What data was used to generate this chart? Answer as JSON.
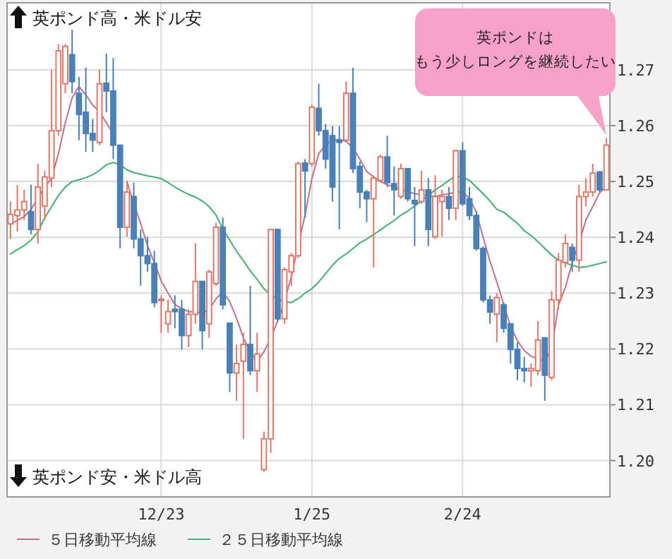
{
  "chart_data": {
    "type": "candlestick",
    "annotations": [
      "英ポンド高・米ドル安",
      "英ポンド安・米ドル高",
      "英ポンドは",
      "もう少しロングを継続したい"
    ],
    "categories": [
      null,
      null,
      null,
      null,
      null,
      null,
      null,
      null,
      null,
      null,
      null,
      null,
      null,
      null,
      null,
      null,
      null,
      null,
      null,
      null,
      null,
      null,
      "12/23",
      null,
      null,
      null,
      null,
      null,
      null,
      null,
      null,
      null,
      null,
      null,
      null,
      null,
      null,
      null,
      null,
      null,
      null,
      null,
      null,
      null,
      "1/25",
      null,
      null,
      null,
      null,
      null,
      null,
      null,
      null,
      null,
      null,
      null,
      null,
      null,
      null,
      null,
      null,
      null,
      null,
      null,
      null,
      null,
      "2/24",
      null,
      null,
      null,
      null,
      null,
      null,
      null,
      null,
      null,
      null,
      null,
      null,
      null,
      null,
      null,
      null,
      null,
      null,
      null,
      null,
      null
    ],
    "ohlc": [
      [
        1.2424,
        1.2464,
        1.2397,
        1.2441
      ],
      [
        1.2439,
        1.2494,
        1.241,
        1.2449
      ],
      [
        1.2449,
        1.2485,
        1.2431,
        1.2464
      ],
      [
        1.2446,
        1.2494,
        1.2405,
        1.2414
      ],
      [
        1.2414,
        1.2532,
        1.2389,
        1.249
      ],
      [
        1.2456,
        1.2519,
        1.2431,
        1.2508
      ],
      [
        1.2506,
        1.27,
        1.249,
        1.2591
      ],
      [
        1.2591,
        1.2746,
        1.2582,
        1.2734
      ],
      [
        1.2675,
        1.2746,
        1.2658,
        1.2742
      ],
      [
        1.2727,
        1.2772,
        1.2658,
        1.2679
      ],
      [
        1.2658,
        1.2687,
        1.2574,
        1.262
      ],
      [
        1.2624,
        1.2704,
        1.2553,
        1.2586
      ],
      [
        1.2586,
        1.2612,
        1.2553,
        1.2574
      ],
      [
        1.257,
        1.27,
        1.2565,
        1.2675
      ],
      [
        1.2676,
        1.2729,
        1.2624,
        1.2662
      ],
      [
        1.2662,
        1.2721,
        1.254,
        1.2565
      ],
      [
        1.2565,
        1.2565,
        1.238,
        1.2418
      ],
      [
        1.2418,
        1.2502,
        1.2401,
        1.2481
      ],
      [
        1.2473,
        1.2498,
        1.238,
        1.2397
      ],
      [
        1.2397,
        1.2414,
        1.2313,
        1.2367
      ],
      [
        1.2367,
        1.2401,
        1.2338,
        1.2353
      ],
      [
        1.2353,
        1.2376,
        1.2275,
        1.2283
      ],
      [
        1.2287,
        1.2296,
        1.2229,
        1.2289
      ],
      [
        1.2245,
        1.2288,
        1.2229,
        1.2267
      ],
      [
        1.2271,
        1.2296,
        1.2237,
        1.2267
      ],
      [
        1.2271,
        1.2288,
        1.2199,
        1.2224
      ],
      [
        1.2224,
        1.2271,
        1.2203,
        1.2262
      ],
      [
        1.2262,
        1.2389,
        1.2245,
        1.2321
      ],
      [
        1.2321,
        1.2321,
        1.2199,
        1.2233
      ],
      [
        1.2245,
        1.2342,
        1.222,
        1.2338
      ],
      [
        1.2317,
        1.2426,
        1.2313,
        1.2418
      ],
      [
        1.2418,
        1.2435,
        1.2271,
        1.2279
      ],
      [
        1.2246,
        1.2246,
        1.2123,
        1.2157
      ],
      [
        1.2157,
        1.2208,
        1.2107,
        1.2174
      ],
      [
        1.2178,
        1.2229,
        1.2039,
        1.2208
      ],
      [
        1.2208,
        1.2313,
        1.2153,
        1.2161
      ],
      [
        1.2161,
        1.2229,
        1.2123,
        1.2191
      ],
      [
        1.1984,
        1.2052,
        1.198,
        1.2039
      ],
      [
        1.2039,
        1.2414,
        1.2014,
        1.2414
      ],
      [
        1.2414,
        1.2414,
        1.225,
        1.2254
      ],
      [
        1.2254,
        1.2346,
        1.2245,
        1.2342
      ],
      [
        1.2338,
        1.2372,
        1.2313,
        1.2367
      ],
      [
        1.2367,
        1.2536,
        1.2363,
        1.2532
      ],
      [
        1.2533,
        1.254,
        1.2435,
        1.2519
      ],
      [
        1.2532,
        1.2637,
        1.2527,
        1.2633
      ],
      [
        1.2631,
        1.2675,
        1.2582,
        1.2591
      ],
      [
        1.2591,
        1.2603,
        1.2523,
        1.254
      ],
      [
        1.2582,
        1.2599,
        1.2464,
        1.249
      ],
      [
        1.2574,
        1.2599,
        1.2414,
        1.257
      ],
      [
        1.2574,
        1.2679,
        1.257,
        1.2658
      ],
      [
        1.2658,
        1.2704,
        1.2515,
        1.2523
      ],
      [
        1.2527,
        1.2536,
        1.2452,
        1.2481
      ],
      [
        1.2481,
        1.2485,
        1.2427,
        1.2469
      ],
      [
        1.2469,
        1.2511,
        1.2346,
        1.2506
      ],
      [
        1.2502,
        1.2548,
        1.2498,
        1.2544
      ],
      [
        1.2544,
        1.2582,
        1.249,
        1.2498
      ],
      [
        1.2496,
        1.2527,
        1.2439,
        1.2485
      ],
      [
        1.2473,
        1.2532,
        1.2469,
        1.2523
      ],
      [
        1.2523,
        1.2523,
        1.2464,
        1.2469
      ],
      [
        1.2466,
        1.249,
        1.2384,
        1.246
      ],
      [
        1.2464,
        1.2519,
        1.246,
        1.2485
      ],
      [
        1.2485,
        1.2506,
        1.2384,
        1.2414
      ],
      [
        1.2401,
        1.2511,
        1.2397,
        1.2473
      ],
      [
        1.2464,
        1.2485,
        1.2401,
        1.2473
      ],
      [
        1.2473,
        1.249,
        1.2431,
        1.2452
      ],
      [
        1.2452,
        1.2557,
        1.2431,
        1.2555
      ],
      [
        1.2555,
        1.257,
        1.2456,
        1.246
      ],
      [
        1.2469,
        1.249,
        1.2431,
        1.2439
      ],
      [
        1.2439,
        1.2447,
        1.2376,
        1.238
      ],
      [
        1.238,
        1.2384,
        1.2283,
        1.2288
      ],
      [
        1.2288,
        1.2296,
        1.2245,
        1.2266
      ],
      [
        1.2262,
        1.23,
        1.2212,
        1.2292
      ],
      [
        1.2279,
        1.2283,
        1.2229,
        1.2237
      ],
      [
        1.2245,
        1.2245,
        1.2174,
        1.2199
      ],
      [
        1.2199,
        1.2212,
        1.2144,
        1.2165
      ],
      [
        1.2165,
        1.2186,
        1.214,
        1.2161
      ],
      [
        1.2161,
        1.2174,
        1.2132,
        1.2165
      ],
      [
        1.2161,
        1.225,
        1.2153,
        1.2216
      ],
      [
        1.222,
        1.222,
        1.2107,
        1.2153
      ],
      [
        1.2149,
        1.2304,
        1.2144,
        1.2288
      ],
      [
        1.2288,
        1.2372,
        1.2271,
        1.2359
      ],
      [
        1.2355,
        1.2405,
        1.2346,
        1.2389
      ],
      [
        1.2382,
        1.2389,
        1.2338,
        1.2359
      ],
      [
        1.2359,
        1.2494,
        1.2338,
        1.2473
      ],
      [
        1.2473,
        1.2506,
        1.2456,
        1.2481
      ],
      [
        1.2481,
        1.2532,
        1.2473,
        1.2515
      ],
      [
        1.2517,
        1.2519,
        1.2481,
        1.2485
      ],
      [
        1.2485,
        1.2578,
        1.2485,
        1.2565
      ]
    ],
    "colors": [
      "#e0786a",
      "#e0786a",
      "#e0786a",
      "#4a80b8",
      "#e0786a",
      "#e0786a",
      "#e0786a",
      "#e0786a",
      "#e0786a",
      "#4a80b8",
      "#4a80b8",
      "#4a80b8",
      "#4a80b8",
      "#e0786a",
      "#4a80b8",
      "#4a80b8",
      "#4a80b8",
      "#e0786a",
      "#4a80b8",
      "#4a80b8",
      "#4a80b8",
      "#4a80b8",
      "#e0786a",
      "#e0786a",
      "#4a80b8",
      "#4a80b8",
      "#e0786a",
      "#e0786a",
      "#4a80b8",
      "#e0786a",
      "#e0786a",
      "#4a80b8",
      "#4a80b8",
      "#e0786a",
      "#e0786a",
      "#4a80b8",
      "#e0786a",
      "#e0786a",
      "#e0786a",
      "#4a80b8",
      "#e0786a",
      "#e0786a",
      "#e0786a",
      "#4a80b8",
      "#e0786a",
      "#4a80b8",
      "#4a80b8",
      "#4a80b8",
      "#4a80b8",
      "#e0786a",
      "#4a80b8",
      "#4a80b8",
      "#4a80b8",
      "#e0786a",
      "#e0786a",
      "#4a80b8",
      "#4a80b8",
      "#e0786a",
      "#4a80b8",
      "#4a80b8",
      "#e0786a",
      "#4a80b8",
      "#e0786a",
      "#e0786a",
      "#4a80b8",
      "#e0786a",
      "#4a80b8",
      "#4a80b8",
      "#4a80b8",
      "#4a80b8",
      "#4a80b8",
      "#e0786a",
      "#4a80b8",
      "#4a80b8",
      "#4a80b8",
      "#4a80b8",
      "#e0786a",
      "#e0786a",
      "#4a80b8",
      "#e0786a",
      "#e0786a",
      "#e0786a",
      "#4a80b8",
      "#e0786a",
      "#e0786a",
      "#e0786a",
      "#4a80b8",
      "#e0786a"
    ],
    "series": [
      {
        "name": "５日移動平均線",
        "type": "line",
        "color": "#c0708a",
        "values": [
          1.2424,
          1.243,
          1.2437,
          1.245,
          1.247,
          1.249,
          1.2506,
          1.255,
          1.2605,
          1.265,
          1.267,
          1.2655,
          1.2637,
          1.2625,
          1.2605,
          1.2585,
          null,
          1.25,
          1.246,
          1.2425,
          1.2385,
          1.2355,
          1.2322,
          1.23,
          1.228,
          1.2272,
          1.2267,
          1.2266,
          1.2265,
          1.227,
          1.229,
          1.2302,
          1.2285,
          1.2255,
          1.222,
          1.2195,
          1.2178,
          1.2195,
          1.222,
          1.225,
          1.2285,
          1.233,
          1.2385,
          1.244,
          1.2505,
          1.255,
          1.2565,
          1.2574,
          1.2575,
          1.2572,
          1.256,
          1.254,
          1.2518,
          1.2508,
          1.25,
          1.2494,
          1.249,
          1.2486,
          1.2482,
          1.2478,
          1.2476,
          1.2475,
          1.2473,
          1.2476,
          1.2478,
          1.2481,
          1.2481,
          1.247,
          1.2445,
          1.24,
          1.2357,
          1.232,
          1.228,
          1.224,
          1.2215,
          1.2197,
          1.2187,
          1.2182,
          1.2178,
          1.22,
          1.2279,
          1.231,
          1.2355,
          1.239,
          1.2431,
          1.2455,
          1.248,
          1.249
        ]
      },
      {
        "name": "２５日移動平均線",
        "type": "line",
        "color": "#40b070",
        "values": [
          1.237,
          1.2378,
          1.2385,
          1.2395,
          1.241,
          1.2435,
          1.2455,
          1.2475,
          1.249,
          1.25,
          1.2503,
          1.2507,
          1.2512,
          1.252,
          1.253,
          1.2534,
          1.253,
          1.2521,
          1.2516,
          1.2513,
          1.251,
          1.2508,
          1.2505,
          1.2498,
          1.249,
          1.2483,
          1.2477,
          1.2472,
          1.2465,
          1.2455,
          1.244,
          1.2415,
          1.2395,
          1.2375,
          1.2358,
          1.234,
          1.2325,
          1.2308,
          1.2296,
          1.229,
          1.2285,
          1.2283,
          1.229,
          1.23,
          1.2308,
          1.232,
          1.2335,
          1.235,
          1.2362,
          1.237,
          1.238,
          1.239,
          1.2397,
          1.2405,
          1.2413,
          1.2422,
          1.243,
          1.244,
          1.2447,
          1.2456,
          1.2465,
          1.2475,
          1.2485,
          1.2493,
          1.2502,
          1.251,
          1.2508,
          1.2502,
          1.249,
          1.2478,
          1.2465,
          1.245,
          1.2445,
          1.2435,
          1.2425,
          1.2412,
          1.2403,
          1.2392,
          1.238,
          1.2368,
          1.2359,
          1.2354,
          1.235,
          1.2346,
          1.2347,
          1.235,
          1.2353,
          1.2356
        ]
      }
    ],
    "ylim": [
      1.1935,
      1.282
    ],
    "yticks": [
      {
        "value": 1.2,
        "label": "1.20"
      },
      {
        "value": 1.21,
        "label": "1.21"
      },
      {
        "value": 1.22,
        "label": "1.22"
      },
      {
        "value": 1.23,
        "label": "1.23"
      },
      {
        "value": 1.24,
        "label": "1.24"
      },
      {
        "value": 1.25,
        "label": "1.25"
      },
      {
        "value": 1.26,
        "label": "1.26"
      },
      {
        "value": 1.27,
        "label": "1.27"
      }
    ],
    "grid": true,
    "legend": "bottom"
  }
}
